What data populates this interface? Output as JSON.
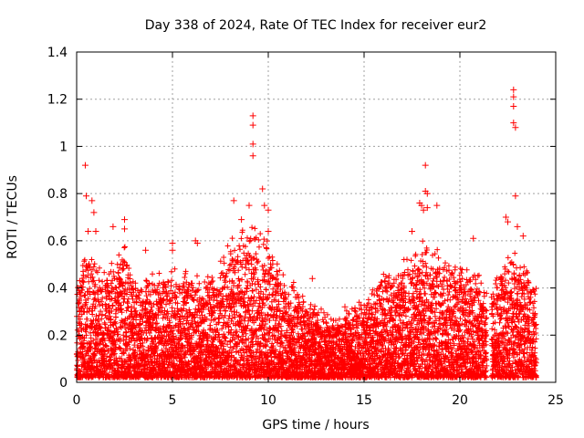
{
  "chart_data": {
    "type": "scatter",
    "title": "Day 338 of 2024, Rate Of TEC Index for receiver eur2",
    "xlabel": "GPS time / hours",
    "ylabel": "ROTI / TECUs",
    "xlim": [
      0,
      25
    ],
    "ylim": [
      0,
      1.4
    ],
    "x_ticks": [
      0,
      5,
      10,
      15,
      20,
      25
    ],
    "x_tick_labels": [
      "0",
      "5",
      "10",
      "15",
      "20",
      "25"
    ],
    "y_ticks": [
      0,
      0.2,
      0.4,
      0.6,
      0.8,
      1,
      1.2,
      1.4
    ],
    "y_tick_labels": [
      "0",
      "0.2",
      "0.4",
      "0.6",
      "0.8",
      "1",
      "1.2",
      "1.4"
    ],
    "grid": true,
    "marker": "+",
    "color": "#ff0000",
    "data_gaps_hours": [
      [
        21.4,
        21.65
      ]
    ],
    "envelope": {
      "x": [
        0.0,
        0.5,
        1.0,
        1.5,
        2.0,
        2.5,
        3.0,
        3.5,
        4.0,
        4.5,
        5.0,
        5.5,
        6.0,
        6.5,
        7.0,
        7.5,
        8.0,
        8.5,
        9.0,
        9.5,
        10.0,
        10.5,
        11.0,
        11.5,
        12.0,
        12.5,
        13.0,
        13.5,
        14.0,
        14.5,
        15.0,
        15.5,
        16.0,
        16.5,
        17.0,
        17.5,
        18.0,
        18.5,
        19.0,
        19.5,
        20.0,
        20.5,
        21.0,
        21.3,
        21.7,
        22.0,
        22.5,
        23.0,
        23.5,
        24.0
      ],
      "typical_max_roti": [
        0.38,
        0.52,
        0.42,
        0.42,
        0.47,
        0.52,
        0.38,
        0.36,
        0.4,
        0.38,
        0.42,
        0.38,
        0.42,
        0.36,
        0.4,
        0.45,
        0.52,
        0.55,
        0.58,
        0.6,
        0.5,
        0.45,
        0.38,
        0.35,
        0.3,
        0.28,
        0.25,
        0.22,
        0.25,
        0.28,
        0.3,
        0.35,
        0.4,
        0.42,
        0.45,
        0.48,
        0.52,
        0.5,
        0.48,
        0.45,
        0.45,
        0.42,
        0.4,
        0.35,
        0.38,
        0.42,
        0.45,
        0.48,
        0.42,
        0.35
      ]
    },
    "spikes": [
      {
        "x": 0.45,
        "y": 0.92
      },
      {
        "x": 0.5,
        "y": 0.79
      },
      {
        "x": 0.6,
        "y": 0.64
      },
      {
        "x": 0.8,
        "y": 0.77
      },
      {
        "x": 0.9,
        "y": 0.72
      },
      {
        "x": 1.0,
        "y": 0.64
      },
      {
        "x": 1.9,
        "y": 0.66
      },
      {
        "x": 2.5,
        "y": 0.69
      },
      {
        "x": 2.5,
        "y": 0.65
      },
      {
        "x": 3.6,
        "y": 0.56
      },
      {
        "x": 5.0,
        "y": 0.59
      },
      {
        "x": 5.0,
        "y": 0.56
      },
      {
        "x": 6.2,
        "y": 0.6
      },
      {
        "x": 6.3,
        "y": 0.59
      },
      {
        "x": 8.2,
        "y": 0.77
      },
      {
        "x": 8.6,
        "y": 0.69
      },
      {
        "x": 9.0,
        "y": 0.75
      },
      {
        "x": 9.2,
        "y": 1.13
      },
      {
        "x": 9.2,
        "y": 1.09
      },
      {
        "x": 9.2,
        "y": 1.01
      },
      {
        "x": 9.2,
        "y": 0.96
      },
      {
        "x": 9.7,
        "y": 0.82
      },
      {
        "x": 9.8,
        "y": 0.75
      },
      {
        "x": 10.0,
        "y": 0.73
      },
      {
        "x": 10.0,
        "y": 0.64
      },
      {
        "x": 12.3,
        "y": 0.44
      },
      {
        "x": 14.0,
        "y": 0.32
      },
      {
        "x": 17.5,
        "y": 0.64
      },
      {
        "x": 17.9,
        "y": 0.76
      },
      {
        "x": 18.0,
        "y": 0.75
      },
      {
        "x": 18.1,
        "y": 0.73
      },
      {
        "x": 18.2,
        "y": 0.92
      },
      {
        "x": 18.2,
        "y": 0.81
      },
      {
        "x": 18.3,
        "y": 0.8
      },
      {
        "x": 18.3,
        "y": 0.74
      },
      {
        "x": 18.8,
        "y": 0.75
      },
      {
        "x": 20.7,
        "y": 0.61
      },
      {
        "x": 22.4,
        "y": 0.7
      },
      {
        "x": 22.5,
        "y": 0.68
      },
      {
        "x": 22.8,
        "y": 1.24
      },
      {
        "x": 22.8,
        "y": 1.21
      },
      {
        "x": 22.8,
        "y": 1.17
      },
      {
        "x": 22.8,
        "y": 1.1
      },
      {
        "x": 22.9,
        "y": 1.08
      },
      {
        "x": 22.9,
        "y": 0.79
      },
      {
        "x": 23.0,
        "y": 0.66
      },
      {
        "x": 23.3,
        "y": 0.62
      }
    ]
  }
}
